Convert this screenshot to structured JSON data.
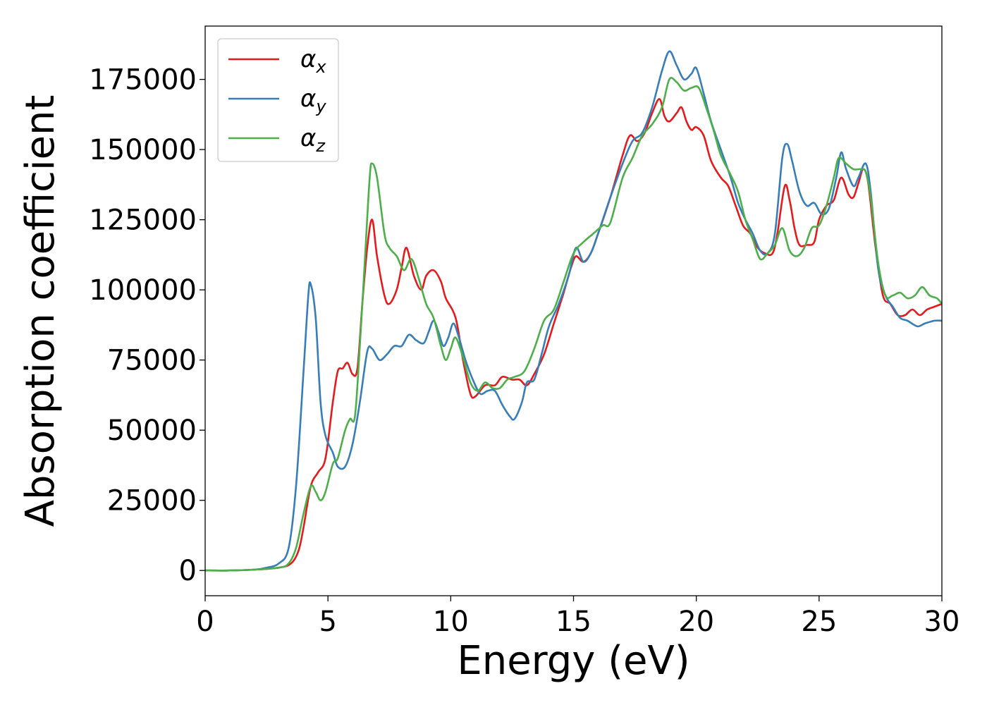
{
  "chart_data": {
    "type": "line",
    "xlabel": "Energy (eV)",
    "ylabel": "Absorption coefficient",
    "xlim": [
      0,
      30
    ],
    "ylim": [
      -9000,
      194000
    ],
    "xticks": [
      0,
      5,
      10,
      15,
      20,
      25,
      30
    ],
    "xtick_labels": [
      "0",
      "5",
      "10",
      "15",
      "20",
      "25",
      "30"
    ],
    "yticks": [
      0,
      25000,
      50000,
      75000,
      100000,
      125000,
      150000,
      175000
    ],
    "ytick_labels": [
      "0",
      "25000",
      "50000",
      "75000",
      "100000",
      "125000",
      "150000",
      "175000"
    ],
    "grid": false,
    "legend_position": "top-left",
    "series": [
      {
        "name": "α",
        "subscript": "x",
        "color": "#e41a1c",
        "points": [
          [
            0,
            0
          ],
          [
            1,
            0
          ],
          [
            2,
            300
          ],
          [
            3,
            1000
          ],
          [
            3.5,
            2500
          ],
          [
            3.8,
            7000
          ],
          [
            4.0,
            15000
          ],
          [
            4.3,
            30000
          ],
          [
            4.6,
            35000
          ],
          [
            4.9,
            40000
          ],
          [
            5.2,
            60000
          ],
          [
            5.4,
            71000
          ],
          [
            5.6,
            72000
          ],
          [
            5.8,
            74000
          ],
          [
            6.0,
            70000
          ],
          [
            6.2,
            72000
          ],
          [
            6.4,
            95000
          ],
          [
            6.6,
            115000
          ],
          [
            6.8,
            125000
          ],
          [
            7.0,
            112000
          ],
          [
            7.3,
            98000
          ],
          [
            7.5,
            95000
          ],
          [
            7.8,
            100000
          ],
          [
            8.0,
            108000
          ],
          [
            8.2,
            115000
          ],
          [
            8.5,
            105000
          ],
          [
            8.8,
            100000
          ],
          [
            9.0,
            105000
          ],
          [
            9.3,
            107000
          ],
          [
            9.6,
            103000
          ],
          [
            9.8,
            97000
          ],
          [
            10.2,
            90000
          ],
          [
            10.5,
            75000
          ],
          [
            10.8,
            63000
          ],
          [
            11.0,
            62000
          ],
          [
            11.4,
            66000
          ],
          [
            11.8,
            66000
          ],
          [
            12.1,
            69000
          ],
          [
            12.5,
            68000
          ],
          [
            12.8,
            68000
          ],
          [
            13.1,
            66000
          ],
          [
            13.4,
            70000
          ],
          [
            13.8,
            77000
          ],
          [
            14.2,
            88000
          ],
          [
            14.6,
            99000
          ],
          [
            14.9,
            108000
          ],
          [
            15.1,
            112000
          ],
          [
            15.4,
            110000
          ],
          [
            15.7,
            113000
          ],
          [
            16.0,
            120000
          ],
          [
            16.5,
            133000
          ],
          [
            17.0,
            148000
          ],
          [
            17.3,
            155000
          ],
          [
            17.6,
            153000
          ],
          [
            17.9,
            156000
          ],
          [
            18.2,
            163000
          ],
          [
            18.5,
            168000
          ],
          [
            18.7,
            162000
          ],
          [
            18.9,
            160000
          ],
          [
            19.2,
            163000
          ],
          [
            19.4,
            165000
          ],
          [
            19.6,
            160000
          ],
          [
            19.8,
            157000
          ],
          [
            20.0,
            158000
          ],
          [
            20.3,
            155000
          ],
          [
            20.6,
            146000
          ],
          [
            21.0,
            140000
          ],
          [
            21.3,
            137000
          ],
          [
            21.6,
            130000
          ],
          [
            21.9,
            123000
          ],
          [
            22.2,
            120000
          ],
          [
            22.5,
            115000
          ],
          [
            22.8,
            113000
          ],
          [
            23.1,
            113000
          ],
          [
            23.3,
            120000
          ],
          [
            23.6,
            137000
          ],
          [
            23.8,
            132000
          ],
          [
            24.0,
            122000
          ],
          [
            24.2,
            116000
          ],
          [
            24.5,
            116000
          ],
          [
            24.8,
            117000
          ],
          [
            25.0,
            125000
          ],
          [
            25.3,
            130000
          ],
          [
            25.6,
            132000
          ],
          [
            25.9,
            140000
          ],
          [
            26.2,
            134000
          ],
          [
            26.4,
            133000
          ],
          [
            26.6,
            138000
          ],
          [
            26.8,
            143000
          ],
          [
            27.0,
            138000
          ],
          [
            27.3,
            115000
          ],
          [
            27.6,
            98000
          ],
          [
            27.9,
            95000
          ],
          [
            28.2,
            91000
          ],
          [
            28.5,
            91000
          ],
          [
            28.8,
            93000
          ],
          [
            29.1,
            91000
          ],
          [
            29.4,
            93000
          ],
          [
            29.7,
            94000
          ],
          [
            30.0,
            95000
          ]
        ]
      },
      {
        "name": "α",
        "subscript": "y",
        "color": "#377eb8",
        "points": [
          [
            0,
            0
          ],
          [
            1,
            0
          ],
          [
            2,
            300
          ],
          [
            2.5,
            1000
          ],
          [
            3.0,
            2500
          ],
          [
            3.4,
            8000
          ],
          [
            3.7,
            30000
          ],
          [
            4.0,
            70000
          ],
          [
            4.2,
            98000
          ],
          [
            4.3,
            102000
          ],
          [
            4.5,
            90000
          ],
          [
            4.7,
            60000
          ],
          [
            4.9,
            48000
          ],
          [
            5.2,
            42000
          ],
          [
            5.4,
            37000
          ],
          [
            5.7,
            37000
          ],
          [
            6.0,
            45000
          ],
          [
            6.3,
            60000
          ],
          [
            6.6,
            78000
          ],
          [
            6.8,
            79000
          ],
          [
            7.1,
            75000
          ],
          [
            7.4,
            77000
          ],
          [
            7.7,
            80000
          ],
          [
            8.0,
            80000
          ],
          [
            8.3,
            84000
          ],
          [
            8.6,
            82000
          ],
          [
            8.9,
            81000
          ],
          [
            9.1,
            85000
          ],
          [
            9.3,
            89000
          ],
          [
            9.5,
            85000
          ],
          [
            9.7,
            80000
          ],
          [
            9.9,
            83000
          ],
          [
            10.1,
            88000
          ],
          [
            10.3,
            84000
          ],
          [
            10.6,
            75000
          ],
          [
            10.9,
            68000
          ],
          [
            11.2,
            63000
          ],
          [
            11.5,
            64000
          ],
          [
            11.8,
            64000
          ],
          [
            12.1,
            59000
          ],
          [
            12.4,
            55000
          ],
          [
            12.6,
            54000
          ],
          [
            12.9,
            60000
          ],
          [
            13.1,
            67000
          ],
          [
            13.4,
            68000
          ],
          [
            13.7,
            77000
          ],
          [
            14.0,
            87000
          ],
          [
            14.4,
            95000
          ],
          [
            14.8,
            105000
          ],
          [
            15.1,
            115000
          ],
          [
            15.4,
            110000
          ],
          [
            15.7,
            113000
          ],
          [
            16.0,
            120000
          ],
          [
            16.5,
            133000
          ],
          [
            17.0,
            145000
          ],
          [
            17.4,
            153000
          ],
          [
            17.8,
            156000
          ],
          [
            18.2,
            165000
          ],
          [
            18.6,
            178000
          ],
          [
            18.9,
            185000
          ],
          [
            19.2,
            180000
          ],
          [
            19.5,
            175000
          ],
          [
            19.8,
            177000
          ],
          [
            20.0,
            179000
          ],
          [
            20.3,
            170000
          ],
          [
            20.6,
            160000
          ],
          [
            21.0,
            150000
          ],
          [
            21.4,
            140000
          ],
          [
            21.7,
            131000
          ],
          [
            22.0,
            125000
          ],
          [
            22.3,
            120000
          ],
          [
            22.6,
            114000
          ],
          [
            22.9,
            113000
          ],
          [
            23.2,
            120000
          ],
          [
            23.5,
            147000
          ],
          [
            23.7,
            152000
          ],
          [
            23.9,
            146000
          ],
          [
            24.2,
            135000
          ],
          [
            24.5,
            130000
          ],
          [
            24.8,
            131000
          ],
          [
            25.1,
            127000
          ],
          [
            25.4,
            129000
          ],
          [
            25.7,
            140000
          ],
          [
            25.9,
            149000
          ],
          [
            26.1,
            143000
          ],
          [
            26.4,
            137000
          ],
          [
            26.6,
            140000
          ],
          [
            26.9,
            145000
          ],
          [
            27.1,
            135000
          ],
          [
            27.4,
            108000
          ],
          [
            27.7,
            98000
          ],
          [
            28.0,
            94000
          ],
          [
            28.3,
            90000
          ],
          [
            28.6,
            89000
          ],
          [
            29.0,
            87000
          ],
          [
            29.3,
            88000
          ],
          [
            29.7,
            89000
          ],
          [
            30.0,
            89000
          ]
        ]
      },
      {
        "name": "α",
        "subscript": "z",
        "color": "#4daf4a",
        "points": [
          [
            0,
            0
          ],
          [
            1,
            0
          ],
          [
            2,
            300
          ],
          [
            3,
            1000
          ],
          [
            3.4,
            2500
          ],
          [
            3.7,
            8000
          ],
          [
            4.0,
            20000
          ],
          [
            4.3,
            30000
          ],
          [
            4.5,
            28000
          ],
          [
            4.7,
            25000
          ],
          [
            4.9,
            28000
          ],
          [
            5.2,
            38000
          ],
          [
            5.4,
            40000
          ],
          [
            5.7,
            50000
          ],
          [
            5.9,
            54000
          ],
          [
            6.1,
            55000
          ],
          [
            6.3,
            80000
          ],
          [
            6.5,
            110000
          ],
          [
            6.7,
            140000
          ],
          [
            6.8,
            145000
          ],
          [
            7.0,
            140000
          ],
          [
            7.3,
            120000
          ],
          [
            7.5,
            115000
          ],
          [
            7.8,
            112000
          ],
          [
            8.1,
            107000
          ],
          [
            8.4,
            111000
          ],
          [
            8.7,
            104000
          ],
          [
            9.0,
            95000
          ],
          [
            9.3,
            90000
          ],
          [
            9.6,
            80000
          ],
          [
            9.8,
            75000
          ],
          [
            10.0,
            79000
          ],
          [
            10.2,
            83000
          ],
          [
            10.5,
            76000
          ],
          [
            10.8,
            67000
          ],
          [
            11.1,
            64000
          ],
          [
            11.4,
            67000
          ],
          [
            11.7,
            65000
          ],
          [
            12.0,
            65000
          ],
          [
            12.3,
            68000
          ],
          [
            12.6,
            69000
          ],
          [
            13.0,
            71000
          ],
          [
            13.4,
            79000
          ],
          [
            13.8,
            89000
          ],
          [
            14.2,
            93000
          ],
          [
            14.6,
            103000
          ],
          [
            15.0,
            113000
          ],
          [
            15.4,
            117000
          ],
          [
            15.8,
            120000
          ],
          [
            16.2,
            123000
          ],
          [
            16.5,
            124000
          ],
          [
            17.0,
            140000
          ],
          [
            17.4,
            147000
          ],
          [
            17.8,
            155000
          ],
          [
            18.2,
            159000
          ],
          [
            18.6,
            165000
          ],
          [
            18.9,
            175000
          ],
          [
            19.2,
            174000
          ],
          [
            19.5,
            171000
          ],
          [
            19.8,
            172000
          ],
          [
            20.1,
            172000
          ],
          [
            20.4,
            165000
          ],
          [
            20.7,
            157000
          ],
          [
            21.0,
            148000
          ],
          [
            21.4,
            141000
          ],
          [
            21.7,
            135000
          ],
          [
            22.0,
            125000
          ],
          [
            22.3,
            118000
          ],
          [
            22.6,
            111000
          ],
          [
            22.9,
            113000
          ],
          [
            23.2,
            116000
          ],
          [
            23.5,
            122000
          ],
          [
            23.8,
            114000
          ],
          [
            24.1,
            112000
          ],
          [
            24.4,
            115000
          ],
          [
            24.7,
            122000
          ],
          [
            25.0,
            123000
          ],
          [
            25.3,
            130000
          ],
          [
            25.6,
            140000
          ],
          [
            25.8,
            147000
          ],
          [
            26.1,
            145000
          ],
          [
            26.4,
            143000
          ],
          [
            26.7,
            143000
          ],
          [
            26.9,
            142000
          ],
          [
            27.1,
            133000
          ],
          [
            27.4,
            110000
          ],
          [
            27.7,
            98000
          ],
          [
            28.0,
            98000
          ],
          [
            28.3,
            99000
          ],
          [
            28.6,
            97000
          ],
          [
            28.9,
            98000
          ],
          [
            29.2,
            101000
          ],
          [
            29.5,
            98000
          ],
          [
            29.8,
            97000
          ],
          [
            30.0,
            95000
          ]
        ]
      }
    ]
  }
}
